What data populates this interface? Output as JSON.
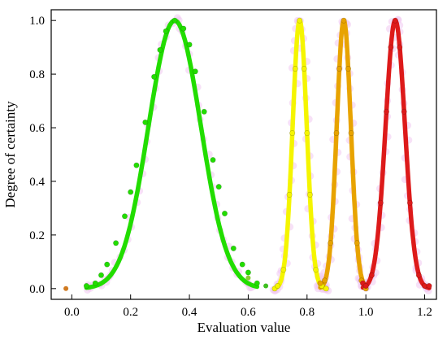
{
  "chart_data": {
    "type": "scatter",
    "title": "",
    "xlabel": "Evaluation value",
    "ylabel": "Degree of certainty",
    "xlim": [
      -0.07,
      1.24
    ],
    "ylim": [
      -0.04,
      1.04
    ],
    "xticks": [
      0.0,
      0.2,
      0.4,
      0.6,
      0.8,
      1.0,
      1.2
    ],
    "xtick_labels": [
      "0.0",
      "0.2",
      "0.4",
      "0.6",
      "0.8",
      "1.0",
      "1.2"
    ],
    "yticks": [
      0.0,
      0.2,
      0.4,
      0.6,
      0.8,
      1.0
    ],
    "ytick_labels": [
      "0.0",
      "0.2",
      "0.4",
      "0.6",
      "0.8",
      "1.0"
    ],
    "grid": false,
    "ticks_direction": "in",
    "halo_color": "#f0c8f0",
    "series": [
      {
        "center": 0.35,
        "sigma": 0.089,
        "color": "#22dd00",
        "xrange": [
          0.05,
          0.63
        ],
        "points": [
          [
            0.05,
            0.01
          ],
          [
            0.08,
            0.02
          ],
          [
            0.1,
            0.05
          ],
          [
            0.12,
            0.09
          ],
          [
            0.15,
            0.17
          ],
          [
            0.18,
            0.27
          ],
          [
            0.2,
            0.36
          ],
          [
            0.22,
            0.46
          ],
          [
            0.25,
            0.62
          ],
          [
            0.28,
            0.79
          ],
          [
            0.3,
            0.89
          ],
          [
            0.32,
            0.96
          ],
          [
            0.35,
            1.0
          ],
          [
            0.38,
            0.97
          ],
          [
            0.4,
            0.91
          ],
          [
            0.42,
            0.81
          ],
          [
            0.45,
            0.66
          ],
          [
            0.48,
            0.48
          ],
          [
            0.5,
            0.38
          ],
          [
            0.52,
            0.28
          ],
          [
            0.55,
            0.15
          ],
          [
            0.58,
            0.09
          ],
          [
            0.6,
            0.06
          ],
          [
            0.63,
            0.02
          ]
        ]
      },
      {
        "center": 0.775,
        "sigma": 0.024,
        "color": "#f5f500",
        "xrange": [
          0.69,
          0.865
        ],
        "points": [
          [
            0.69,
            0.0
          ],
          [
            0.7,
            0.01
          ],
          [
            0.72,
            0.07
          ],
          [
            0.74,
            0.35
          ],
          [
            0.75,
            0.58
          ],
          [
            0.76,
            0.82
          ],
          [
            0.775,
            1.0
          ],
          [
            0.79,
            0.82
          ],
          [
            0.8,
            0.58
          ],
          [
            0.81,
            0.35
          ],
          [
            0.83,
            0.07
          ],
          [
            0.85,
            0.01
          ],
          [
            0.865,
            0.0
          ]
        ]
      },
      {
        "center": 0.925,
        "sigma": 0.024,
        "color": "#e8a300",
        "xrange": [
          0.845,
          1.0
        ],
        "points": [
          [
            0.845,
            0.02
          ],
          [
            0.86,
            0.03
          ],
          [
            0.88,
            0.17
          ],
          [
            0.9,
            0.58
          ],
          [
            0.91,
            0.82
          ],
          [
            0.925,
            1.0
          ],
          [
            0.94,
            0.82
          ],
          [
            0.95,
            0.58
          ],
          [
            0.97,
            0.17
          ],
          [
            0.985,
            0.03
          ],
          [
            1.0,
            0.0
          ]
        ]
      },
      {
        "center": 1.1,
        "sigma": 0.033,
        "color": "#dd1a1a",
        "xrange": [
          0.99,
          1.215
        ],
        "points": [
          [
            0.99,
            0.02
          ],
          [
            1.0,
            0.01
          ],
          [
            1.02,
            0.05
          ],
          [
            1.05,
            0.32
          ],
          [
            1.07,
            0.66
          ],
          [
            1.085,
            0.9
          ],
          [
            1.1,
            1.0
          ],
          [
            1.115,
            0.9
          ],
          [
            1.13,
            0.66
          ],
          [
            1.15,
            0.32
          ],
          [
            1.18,
            0.05
          ],
          [
            1.2,
            0.01
          ],
          [
            1.215,
            0.01
          ]
        ]
      }
    ],
    "outliers": [
      [
        -0.02,
        0.0,
        "#d07a20"
      ],
      [
        0.66,
        0.01,
        "#3fbf20"
      ],
      [
        0.6,
        0.04,
        "#88cc33"
      ]
    ]
  }
}
